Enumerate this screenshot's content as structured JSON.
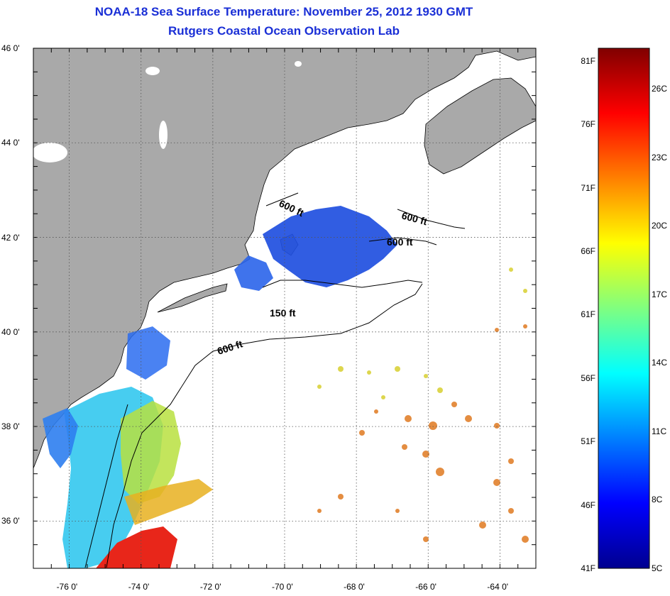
{
  "title": {
    "line1": "NOAA-18 Sea Surface Temperature:  November 25, 2012 1930 GMT",
    "line2": "Rutgers Coastal Ocean Observation Lab"
  },
  "map": {
    "lat_ticks": [
      {
        "label": "46 0'",
        "value": 46
      },
      {
        "label": "44 0'",
        "value": 44
      },
      {
        "label": "42 0'",
        "value": 42
      },
      {
        "label": "40 0'",
        "value": 40
      },
      {
        "label": "38 0'",
        "value": 38
      },
      {
        "label": "36 0'",
        "value": 36
      }
    ],
    "lon_ticks": [
      {
        "label": "-76 0'",
        "value": -76
      },
      {
        "label": "-74 0'",
        "value": -74
      },
      {
        "label": "-72 0'",
        "value": -72
      },
      {
        "label": "-70 0'",
        "value": -70
      },
      {
        "label": "-68 0'",
        "value": -68
      },
      {
        "label": "-66 0'",
        "value": -66
      },
      {
        "label": "-64 0'",
        "value": -64
      }
    ],
    "contour_labels": [
      "600 ft",
      "600 ft",
      "600 ft",
      "150 ft",
      "600 ft"
    ],
    "colors": {
      "land": "#a9a9a9",
      "cold": "#1f4fe0",
      "mid": "#33c8ee",
      "warm": "#e8b020",
      "hot": "#e8261a"
    }
  },
  "colorbar": {
    "fahrenheit": [
      {
        "label": "81F",
        "value": 81
      },
      {
        "label": "76F",
        "value": 76
      },
      {
        "label": "71F",
        "value": 71
      },
      {
        "label": "66F",
        "value": 66
      },
      {
        "label": "61F",
        "value": 61
      },
      {
        "label": "56F",
        "value": 56
      },
      {
        "label": "51F",
        "value": 51
      },
      {
        "label": "46F",
        "value": 46
      },
      {
        "label": "41F",
        "value": 41
      }
    ],
    "celsius": [
      {
        "label": "26C",
        "value": 26
      },
      {
        "label": "23C",
        "value": 23
      },
      {
        "label": "20C",
        "value": 20
      },
      {
        "label": "17C",
        "value": 17
      },
      {
        "label": "14C",
        "value": 14
      },
      {
        "label": "11C",
        "value": 11
      },
      {
        "label": "8C",
        "value": 8
      },
      {
        "label": "5C",
        "value": 5
      }
    ],
    "range_f": [
      41,
      82
    ]
  }
}
